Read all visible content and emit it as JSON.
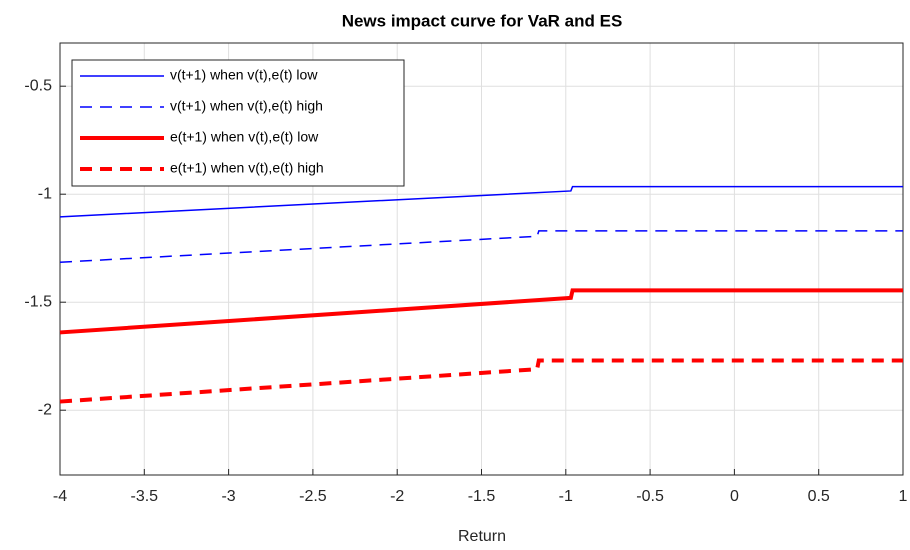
{
  "chart_data": {
    "type": "line",
    "title": "News impact curve for VaR and ES",
    "xlabel": "Return",
    "xlim": [
      -4,
      1
    ],
    "ylim": [
      -2.3,
      -0.3
    ],
    "xticks": [
      -4,
      -3.5,
      -3,
      -2.5,
      -2,
      -1.5,
      -1,
      -0.5,
      0,
      0.5,
      1
    ],
    "yticks": [
      -2,
      -1.5,
      -1,
      -0.5
    ],
    "grid": true,
    "legend": "upper left",
    "series": [
      {
        "name": "v(t+1) when v(t),e(t) low",
        "color": "#0000ff",
        "width": 1.5,
        "dash": false,
        "x": [
          -4,
          -0.97,
          -0.96,
          1
        ],
        "values": [
          -1.105,
          -0.985,
          -0.965,
          -0.965
        ]
      },
      {
        "name": "v(t+1) when v(t),e(t) high",
        "color": "#0000ff",
        "width": 1.5,
        "dash": true,
        "x": [
          -4,
          -1.17,
          -1.16,
          1
        ],
        "values": [
          -1.315,
          -1.195,
          -1.17,
          -1.17
        ]
      },
      {
        "name": "e(t+1) when v(t),e(t) low",
        "color": "#ff0000",
        "width": 4,
        "dash": false,
        "x": [
          -4,
          -0.97,
          -0.96,
          1
        ],
        "values": [
          -1.64,
          -1.48,
          -1.445,
          -1.445
        ]
      },
      {
        "name": "e(t+1) when v(t),e(t) high",
        "color": "#ff0000",
        "width": 4,
        "dash": true,
        "x": [
          -4,
          -1.17,
          -1.16,
          1
        ],
        "values": [
          -1.96,
          -1.81,
          -1.77,
          -1.77
        ]
      }
    ]
  }
}
